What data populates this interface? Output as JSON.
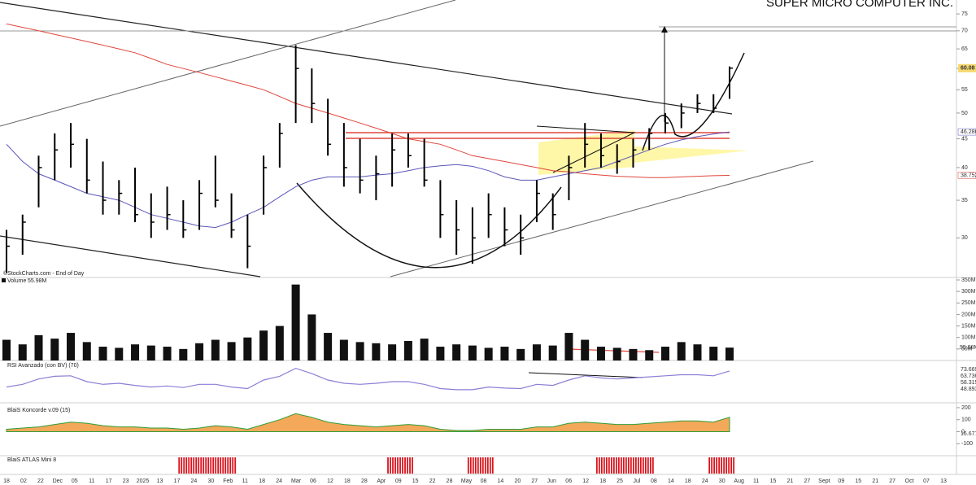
{
  "chart_data": [
    {
      "type": "ohlc",
      "title": "SUPER MICRO COMPUTER INC.",
      "source": "©StockCharts.com - End of Day",
      "log_scale": true,
      "ylim": [
        25.6,
        79.4
      ],
      "yticks": [
        30,
        35,
        40,
        45,
        50,
        55,
        60,
        65,
        70,
        75
      ],
      "x_labels": [
        "18",
        "02",
        "22",
        "Dec",
        "05",
        "11",
        "17",
        "23",
        "2025",
        "13",
        "17",
        "24",
        "30",
        "Feb",
        "11",
        "18",
        "24",
        "Mar",
        "06",
        "12",
        "18",
        "28",
        "Apr",
        "09",
        "15",
        "22",
        "28",
        "May",
        "08",
        "14",
        "20",
        "27",
        "Jun",
        "06",
        "12",
        "18",
        "25",
        "Jul",
        "08",
        "14",
        "18",
        "24",
        "30",
        "Aug",
        "11",
        "15",
        "21",
        "27",
        "Sept",
        "09",
        "15",
        "21",
        "27",
        "Oct",
        "07",
        "13"
      ],
      "color": "#000000",
      "high": [
        31,
        33,
        42,
        46,
        48,
        45,
        41,
        38,
        40,
        36,
        37,
        35,
        38,
        42,
        36,
        33,
        42,
        48,
        66,
        60,
        53,
        48,
        45,
        42,
        46,
        46,
        45,
        38,
        35,
        34,
        36,
        34,
        33,
        38,
        36,
        42,
        48,
        46,
        44,
        45,
        47,
        50,
        52,
        54,
        54,
        60.5
      ],
      "low": [
        26,
        28,
        34,
        38,
        40,
        36,
        33,
        33,
        32,
        30,
        31,
        30,
        31,
        34,
        30,
        26.5,
        33,
        40,
        48,
        48,
        42,
        37,
        36,
        35,
        37,
        40,
        37,
        30,
        28,
        27,
        30,
        29,
        28,
        32,
        31,
        35,
        40,
        40,
        39,
        40,
        43,
        46,
        47,
        50,
        50,
        53
      ],
      "close": [
        29,
        32,
        40,
        43,
        44,
        38,
        35,
        36,
        33,
        32,
        33,
        31,
        36,
        35,
        31,
        29,
        40,
        46,
        60,
        52,
        44,
        40,
        38,
        39,
        43,
        42,
        38,
        33,
        31,
        30,
        33,
        31,
        30,
        36,
        33,
        40,
        44,
        42,
        41,
        43,
        46,
        48,
        50,
        52,
        51,
        60.08
      ],
      "series": [
        {
          "name": "MA long",
          "color": "#e0463c",
          "values": [
            72,
            71,
            70,
            69,
            68,
            67,
            66,
            65,
            64,
            62.5,
            61,
            60,
            59,
            58,
            57,
            56,
            55,
            53.5,
            52,
            51,
            50,
            49,
            48,
            47,
            46,
            45,
            44.5,
            44,
            43,
            42,
            41.5,
            41,
            40.5,
            40,
            39.5,
            39.3,
            39,
            38.8,
            38.6,
            38.5,
            38.4,
            38.4,
            38.5,
            38.6,
            38.7,
            38.752
          ]
        },
        {
          "name": "MA mid",
          "color": "#5b55b8",
          "values": [
            44,
            41,
            39,
            38,
            37,
            36,
            35.5,
            35,
            34,
            33,
            32.5,
            32,
            31.5,
            31.3,
            32,
            33,
            34,
            35.5,
            37,
            38,
            38.5,
            38.5,
            38.5,
            38.8,
            39,
            39.5,
            40,
            40.3,
            40.5,
            40.2,
            39.5,
            38.5,
            38,
            38,
            38.5,
            39,
            39.5,
            40,
            41,
            42,
            43,
            44,
            44.8,
            45.4,
            45.9,
            46.286
          ]
        }
      ]
    },
    {
      "type": "bar",
      "title": "Volume",
      "values": [
        90,
        70,
        110,
        95,
        120,
        80,
        60,
        55,
        70,
        65,
        60,
        50,
        75,
        90,
        80,
        100,
        130,
        150,
        330,
        200,
        120,
        90,
        80,
        75,
        70,
        85,
        95,
        60,
        70,
        65,
        55,
        60,
        50,
        70,
        65,
        120,
        90,
        60,
        55,
        50,
        45,
        60,
        80,
        70,
        60,
        55.98
      ],
      "value_labels": {
        "45": "55.98M"
      },
      "color": "#111111",
      "ylim": [
        0,
        350
      ],
      "yticks": [
        {
          "value": 50,
          "label": "50M"
        },
        {
          "value": 100,
          "label": "100M"
        },
        {
          "value": 150,
          "label": "150M"
        },
        {
          "value": 200,
          "label": "200M"
        },
        {
          "value": 250,
          "label": "250M"
        },
        {
          "value": 300,
          "label": "300M"
        },
        {
          "value": 350,
          "label": "350M"
        }
      ]
    },
    {
      "type": "line",
      "title": "RSI Avanzado (con BV) (70)",
      "color": "#8b7fd6",
      "ylim": [
        20,
        90
      ],
      "values": [
        45,
        50,
        60,
        65,
        66,
        55,
        50,
        52,
        48,
        45,
        47,
        44,
        50,
        50,
        45,
        42,
        58,
        65,
        80,
        70,
        58,
        52,
        50,
        52,
        55,
        55,
        50,
        42,
        40,
        40,
        45,
        43,
        42,
        50,
        48,
        58,
        66,
        62,
        60,
        62,
        64,
        66,
        68,
        68,
        66,
        75
      ],
      "readouts": [
        73.669,
        63.736,
        58.315,
        48.893
      ]
    },
    {
      "type": "area",
      "title": "BlaiS Koncorde v.09 (15)",
      "color": "#f3a85a",
      "ylim": [
        -200,
        220
      ],
      "yticks": [
        -100,
        0,
        100,
        200
      ],
      "values": [
        20,
        30,
        40,
        60,
        80,
        70,
        50,
        40,
        40,
        30,
        30,
        20,
        30,
        50,
        40,
        20,
        60,
        100,
        150,
        120,
        80,
        60,
        50,
        40,
        50,
        60,
        50,
        20,
        10,
        10,
        20,
        20,
        20,
        40,
        40,
        70,
        80,
        70,
        60,
        60,
        70,
        80,
        90,
        90,
        80,
        120
      ],
      "readouts": [
        16.677
      ]
    },
    {
      "type": "signal",
      "title": "BlaiS ATLAS Mini 8",
      "color": "#d9141e",
      "ranges": [
        [
          11,
          14
        ],
        [
          24,
          25
        ],
        [
          29,
          30
        ],
        [
          37,
          40
        ],
        [
          44,
          45
        ]
      ]
    }
  ]
}
